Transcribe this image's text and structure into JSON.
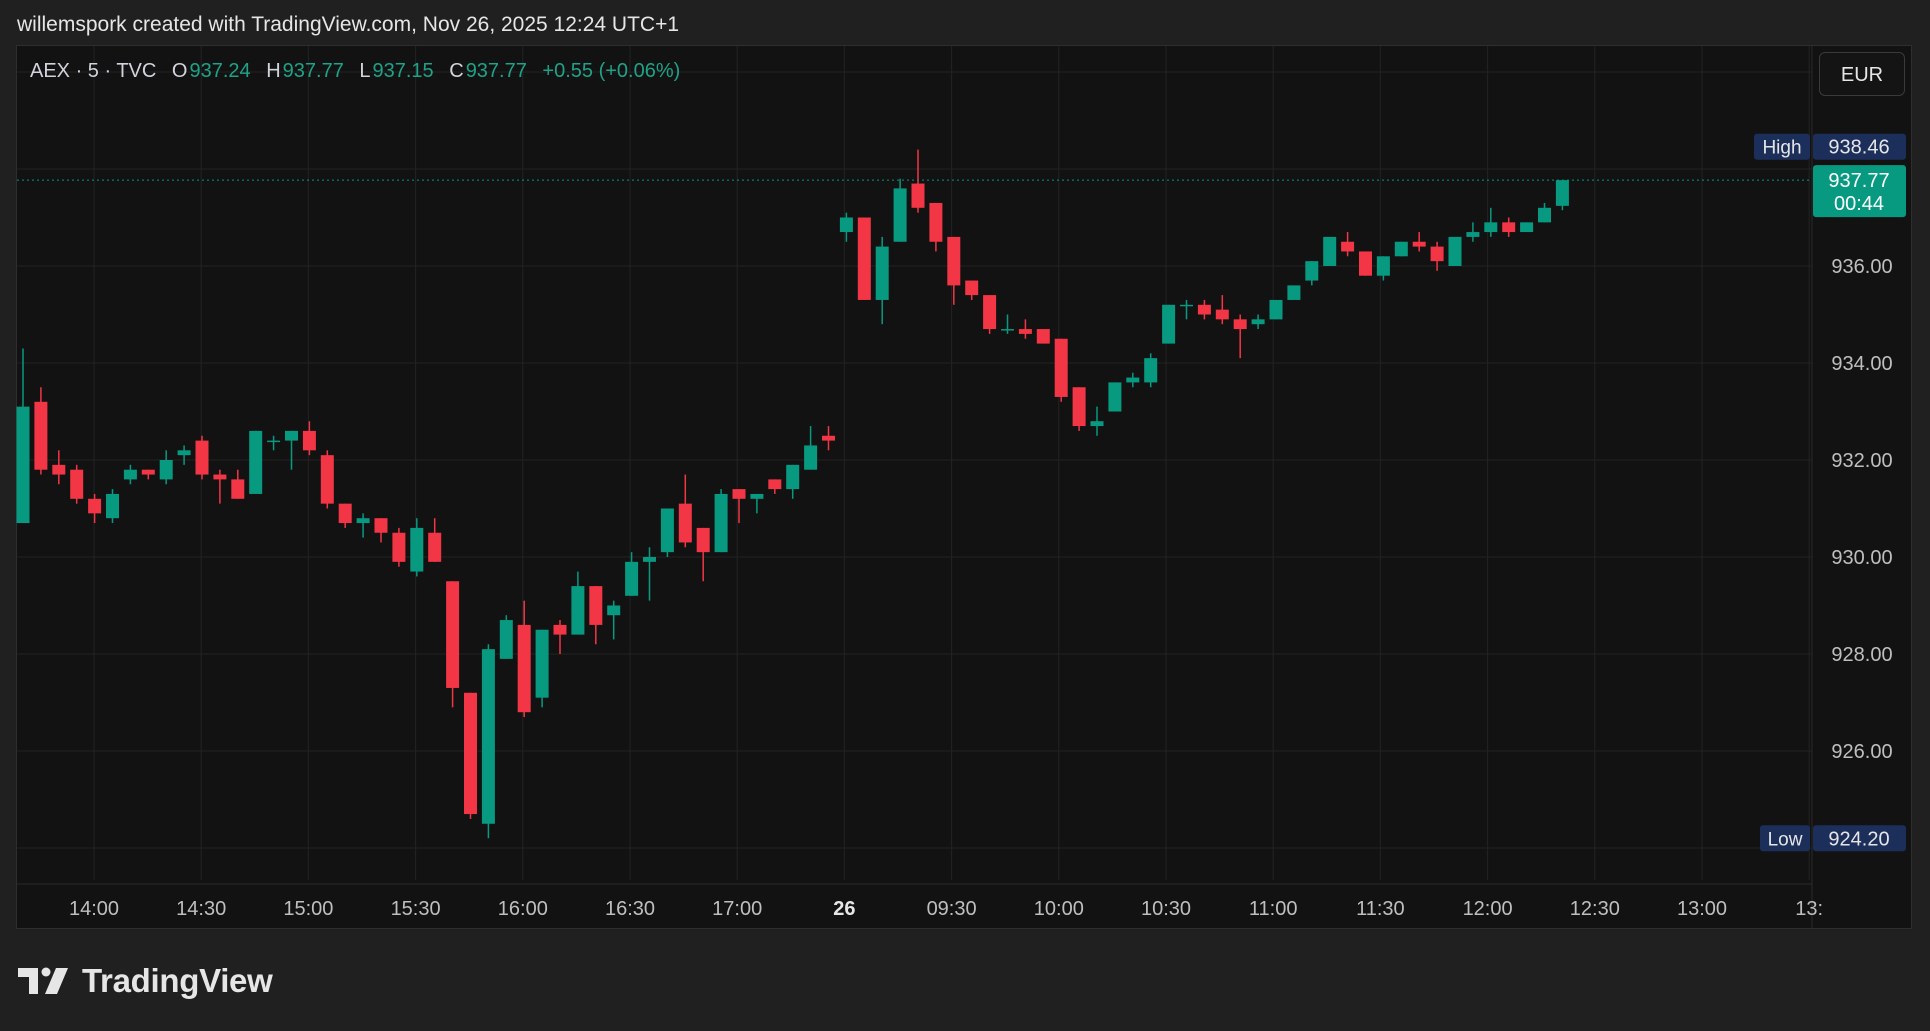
{
  "header": {
    "caption": "willemspork created with TradingView.com, Nov 26, 2025 12:24 UTC+1"
  },
  "legend": {
    "symbol": "AEX · 5 · TVC",
    "open_label": "O",
    "open": "937.24",
    "high_label": "H",
    "high": "937.77",
    "low_label": "L",
    "low": "937.15",
    "close_label": "C",
    "close": "937.77",
    "change": "+0.55 (+0.06%)"
  },
  "currency_button": "EUR",
  "brand": {
    "name": "TradingView",
    "icon": "tradingview-logo-icon"
  },
  "colors": {
    "up": "#089981",
    "down": "#f23645",
    "background": "#121212",
    "grid": "#232323",
    "text": "#d1d4dc",
    "high_low_tag": "#1c2e5a"
  },
  "chart_data": {
    "type": "candlestick",
    "title": "AEX · 5 · TVC",
    "ylim": [
      923.5,
      940.0
    ],
    "y_ticks": [
      "936.00",
      "934.00",
      "932.00",
      "930.00",
      "928.00",
      "926.00"
    ],
    "x_tick_labels": [
      "14:00",
      "14:30",
      "15:00",
      "15:30",
      "16:00",
      "16:30",
      "17:00",
      "26",
      "09:30",
      "10:00",
      "10:30",
      "11:00",
      "11:30",
      "12:00",
      "12:30",
      "13:00",
      "13:"
    ],
    "grid": true,
    "last_price_label": "937.77",
    "last_price": 937.77,
    "countdown_label": "00:44",
    "high_label": "High",
    "high_value_label": "938.46",
    "high_value": 938.46,
    "low_label": "Low",
    "low_value_label": "924.20",
    "low_value": 924.2,
    "candles": [
      {
        "t": "13:45",
        "o": 930.7,
        "h": 934.3,
        "l": 930.7,
        "c": 933.1
      },
      {
        "t": "13:50",
        "o": 933.2,
        "h": 933.5,
        "l": 931.7,
        "c": 931.8
      },
      {
        "t": "13:55",
        "o": 931.9,
        "h": 932.2,
        "l": 931.5,
        "c": 931.7
      },
      {
        "t": "14:00",
        "o": 931.8,
        "h": 931.9,
        "l": 931.1,
        "c": 931.2
      },
      {
        "t": "14:05",
        "o": 931.2,
        "h": 931.3,
        "l": 930.7,
        "c": 930.9
      },
      {
        "t": "14:10",
        "o": 930.8,
        "h": 931.4,
        "l": 930.7,
        "c": 931.3
      },
      {
        "t": "14:15",
        "o": 931.6,
        "h": 931.9,
        "l": 931.5,
        "c": 931.8
      },
      {
        "t": "14:20",
        "o": 931.8,
        "h": 931.8,
        "l": 931.6,
        "c": 931.7
      },
      {
        "t": "14:25",
        "o": 931.6,
        "h": 932.2,
        "l": 931.5,
        "c": 932.0
      },
      {
        "t": "14:30",
        "o": 932.1,
        "h": 932.3,
        "l": 931.9,
        "c": 932.2
      },
      {
        "t": "14:35",
        "o": 932.4,
        "h": 932.5,
        "l": 931.6,
        "c": 931.7
      },
      {
        "t": "14:40",
        "o": 931.7,
        "h": 931.8,
        "l": 931.1,
        "c": 931.6
      },
      {
        "t": "14:45",
        "o": 931.6,
        "h": 931.8,
        "l": 931.2,
        "c": 931.2
      },
      {
        "t": "14:50",
        "o": 931.3,
        "h": 932.6,
        "l": 931.3,
        "c": 932.6
      },
      {
        "t": "14:55",
        "o": 932.4,
        "h": 932.5,
        "l": 932.2,
        "c": 932.4
      },
      {
        "t": "15:00",
        "o": 932.4,
        "h": 932.6,
        "l": 931.8,
        "c": 932.6
      },
      {
        "t": "15:05",
        "o": 932.6,
        "h": 932.8,
        "l": 932.1,
        "c": 932.2
      },
      {
        "t": "15:10",
        "o": 932.1,
        "h": 932.2,
        "l": 931.0,
        "c": 931.1
      },
      {
        "t": "15:15",
        "o": 931.1,
        "h": 931.1,
        "l": 930.6,
        "c": 930.7
      },
      {
        "t": "15:20",
        "o": 930.7,
        "h": 930.9,
        "l": 930.4,
        "c": 930.8
      },
      {
        "t": "15:25",
        "o": 930.8,
        "h": 930.8,
        "l": 930.3,
        "c": 930.5
      },
      {
        "t": "15:30",
        "o": 930.5,
        "h": 930.6,
        "l": 929.8,
        "c": 929.9
      },
      {
        "t": "15:35",
        "o": 929.7,
        "h": 930.8,
        "l": 929.6,
        "c": 930.6
      },
      {
        "t": "15:40",
        "o": 930.5,
        "h": 930.8,
        "l": 929.9,
        "c": 929.9
      },
      {
        "t": "15:45",
        "o": 929.5,
        "h": 929.5,
        "l": 926.9,
        "c": 927.3
      },
      {
        "t": "15:50",
        "o": 927.2,
        "h": 927.2,
        "l": 924.6,
        "c": 924.7
      },
      {
        "t": "15:55",
        "o": 924.5,
        "h": 928.2,
        "l": 924.2,
        "c": 928.1
      },
      {
        "t": "16:00",
        "o": 927.9,
        "h": 928.8,
        "l": 927.9,
        "c": 928.7
      },
      {
        "t": "16:05",
        "o": 928.6,
        "h": 929.1,
        "l": 926.7,
        "c": 926.8
      },
      {
        "t": "16:10",
        "o": 927.1,
        "h": 928.5,
        "l": 926.9,
        "c": 928.5
      },
      {
        "t": "16:15",
        "o": 928.6,
        "h": 928.7,
        "l": 928.0,
        "c": 928.4
      },
      {
        "t": "16:20",
        "o": 928.4,
        "h": 929.7,
        "l": 928.4,
        "c": 929.4
      },
      {
        "t": "16:25",
        "o": 929.4,
        "h": 929.4,
        "l": 928.2,
        "c": 928.6
      },
      {
        "t": "16:30",
        "o": 928.8,
        "h": 929.1,
        "l": 928.3,
        "c": 929.0
      },
      {
        "t": "16:35",
        "o": 929.2,
        "h": 930.1,
        "l": 929.2,
        "c": 929.9
      },
      {
        "t": "16:40",
        "o": 929.9,
        "h": 930.2,
        "l": 929.1,
        "c": 930.0
      },
      {
        "t": "16:45",
        "o": 930.1,
        "h": 931.0,
        "l": 930.0,
        "c": 931.0
      },
      {
        "t": "16:50",
        "o": 931.1,
        "h": 931.7,
        "l": 930.2,
        "c": 930.3
      },
      {
        "t": "16:55",
        "o": 930.6,
        "h": 930.6,
        "l": 929.5,
        "c": 930.1
      },
      {
        "t": "17:00",
        "o": 930.1,
        "h": 931.4,
        "l": 930.1,
        "c": 931.3
      },
      {
        "t": "17:05",
        "o": 931.4,
        "h": 931.4,
        "l": 930.7,
        "c": 931.2
      },
      {
        "t": "17:10",
        "o": 931.2,
        "h": 931.3,
        "l": 930.9,
        "c": 931.3
      },
      {
        "t": "17:15",
        "o": 931.6,
        "h": 931.6,
        "l": 931.3,
        "c": 931.4
      },
      {
        "t": "17:20",
        "o": 931.4,
        "h": 931.9,
        "l": 931.2,
        "c": 931.9
      },
      {
        "t": "17:25",
        "o": 931.8,
        "h": 932.7,
        "l": 931.8,
        "c": 932.3
      },
      {
        "t": "17:30",
        "o": 932.5,
        "h": 932.7,
        "l": 932.2,
        "c": 932.4
      },
      {
        "t": "09:00",
        "o": 936.7,
        "h": 937.1,
        "l": 936.5,
        "c": 937.0
      },
      {
        "t": "09:05",
        "o": 937.0,
        "h": 937.0,
        "l": 935.3,
        "c": 935.3
      },
      {
        "t": "09:10",
        "o": 935.3,
        "h": 936.6,
        "l": 934.8,
        "c": 936.4
      },
      {
        "t": "09:15",
        "o": 936.5,
        "h": 937.8,
        "l": 936.5,
        "c": 937.6
      },
      {
        "t": "09:20",
        "o": 937.7,
        "h": 938.4,
        "l": 937.1,
        "c": 937.2
      },
      {
        "t": "09:25",
        "o": 937.3,
        "h": 937.3,
        "l": 936.3,
        "c": 936.5
      },
      {
        "t": "09:30",
        "o": 936.6,
        "h": 936.6,
        "l": 935.2,
        "c": 935.6
      },
      {
        "t": "09:35",
        "o": 935.7,
        "h": 935.7,
        "l": 935.3,
        "c": 935.4
      },
      {
        "t": "09:40",
        "o": 935.4,
        "h": 935.4,
        "l": 934.6,
        "c": 934.7
      },
      {
        "t": "09:45",
        "o": 934.7,
        "h": 935.0,
        "l": 934.6,
        "c": 934.7
      },
      {
        "t": "09:50",
        "o": 934.7,
        "h": 934.9,
        "l": 934.5,
        "c": 934.6
      },
      {
        "t": "09:55",
        "o": 934.7,
        "h": 934.7,
        "l": 934.4,
        "c": 934.4
      },
      {
        "t": "10:00",
        "o": 934.5,
        "h": 934.5,
        "l": 933.2,
        "c": 933.3
      },
      {
        "t": "10:05",
        "o": 933.5,
        "h": 933.5,
        "l": 932.6,
        "c": 932.7
      },
      {
        "t": "10:10",
        "o": 932.7,
        "h": 933.1,
        "l": 932.5,
        "c": 932.8
      },
      {
        "t": "10:15",
        "o": 933.0,
        "h": 933.6,
        "l": 933.0,
        "c": 933.6
      },
      {
        "t": "10:20",
        "o": 933.6,
        "h": 933.8,
        "l": 933.5,
        "c": 933.7
      },
      {
        "t": "10:25",
        "o": 933.6,
        "h": 934.2,
        "l": 933.5,
        "c": 934.1
      },
      {
        "t": "10:30",
        "o": 934.4,
        "h": 935.2,
        "l": 934.4,
        "c": 935.2
      },
      {
        "t": "10:35",
        "o": 935.2,
        "h": 935.3,
        "l": 934.9,
        "c": 935.2
      },
      {
        "t": "10:40",
        "o": 935.2,
        "h": 935.3,
        "l": 934.9,
        "c": 935.0
      },
      {
        "t": "10:45",
        "o": 935.1,
        "h": 935.4,
        "l": 934.8,
        "c": 934.9
      },
      {
        "t": "10:50",
        "o": 934.9,
        "h": 935.0,
        "l": 934.1,
        "c": 934.7
      },
      {
        "t": "10:55",
        "o": 934.8,
        "h": 935.0,
        "l": 934.7,
        "c": 934.9
      },
      {
        "t": "11:00",
        "o": 934.9,
        "h": 935.3,
        "l": 934.9,
        "c": 935.3
      },
      {
        "t": "11:05",
        "o": 935.3,
        "h": 935.6,
        "l": 935.3,
        "c": 935.6
      },
      {
        "t": "11:10",
        "o": 935.7,
        "h": 936.1,
        "l": 935.6,
        "c": 936.1
      },
      {
        "t": "11:15",
        "o": 936.0,
        "h": 936.6,
        "l": 936.0,
        "c": 936.6
      },
      {
        "t": "11:20",
        "o": 936.5,
        "h": 936.7,
        "l": 936.2,
        "c": 936.3
      },
      {
        "t": "11:25",
        "o": 936.3,
        "h": 936.3,
        "l": 935.8,
        "c": 935.8
      },
      {
        "t": "11:30",
        "o": 935.8,
        "h": 936.2,
        "l": 935.7,
        "c": 936.2
      },
      {
        "t": "11:35",
        "o": 936.2,
        "h": 936.5,
        "l": 936.2,
        "c": 936.5
      },
      {
        "t": "11:40",
        "o": 936.5,
        "h": 936.7,
        "l": 936.3,
        "c": 936.4
      },
      {
        "t": "11:45",
        "o": 936.4,
        "h": 936.5,
        "l": 935.9,
        "c": 936.1
      },
      {
        "t": "11:50",
        "o": 936.0,
        "h": 936.6,
        "l": 936.0,
        "c": 936.6
      },
      {
        "t": "11:55",
        "o": 936.6,
        "h": 936.9,
        "l": 936.5,
        "c": 936.7
      },
      {
        "t": "12:00",
        "o": 936.7,
        "h": 937.2,
        "l": 936.6,
        "c": 936.9
      },
      {
        "t": "12:05",
        "o": 936.9,
        "h": 937.0,
        "l": 936.6,
        "c": 936.7
      },
      {
        "t": "12:10",
        "o": 936.7,
        "h": 936.9,
        "l": 936.7,
        "c": 936.9
      },
      {
        "t": "12:15",
        "o": 936.9,
        "h": 937.3,
        "l": 936.9,
        "c": 937.2
      },
      {
        "t": "12:20",
        "o": 937.24,
        "h": 937.77,
        "l": 937.15,
        "c": 937.77
      }
    ]
  }
}
